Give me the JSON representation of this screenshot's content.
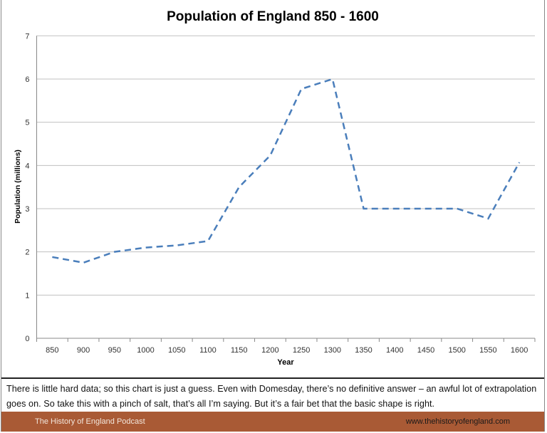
{
  "chart_data": {
    "type": "line",
    "title": "Population of England 850 - 1600",
    "xlabel": "Year",
    "ylabel": "Population (millions)",
    "categories": [
      "850",
      "900",
      "950",
      "1000",
      "1050",
      "1100",
      "1150",
      "1200",
      "1250",
      "1300",
      "1350",
      "1400",
      "1450",
      "1500",
      "1550",
      "1600"
    ],
    "series": [
      {
        "values": [
          1.88,
          1.75,
          2.0,
          2.1,
          2.15,
          2.25,
          3.5,
          4.23,
          5.77,
          6.0,
          3.0,
          3.0,
          3.0,
          3.0,
          2.77,
          4.07
        ]
      }
    ],
    "ylim": [
      0,
      7
    ],
    "yticks": [
      0,
      1,
      2,
      3,
      4,
      5,
      6,
      7
    ],
    "grid": true,
    "line_style": "dashed",
    "line_color": "#4a7ebb"
  },
  "caption": "There is little hard data; so this chart is just a guess. Even with Domesday, there’s no definitive answer – an awful lot of extrapolation goes on. So take this with a pinch of salt, that’s all I’m saying. But it’s a fair bet that the basic shape is right.",
  "footer": {
    "left": "The History of England Podcast",
    "right": "www.thehistoryofengland.com",
    "color": "#a95a35"
  }
}
